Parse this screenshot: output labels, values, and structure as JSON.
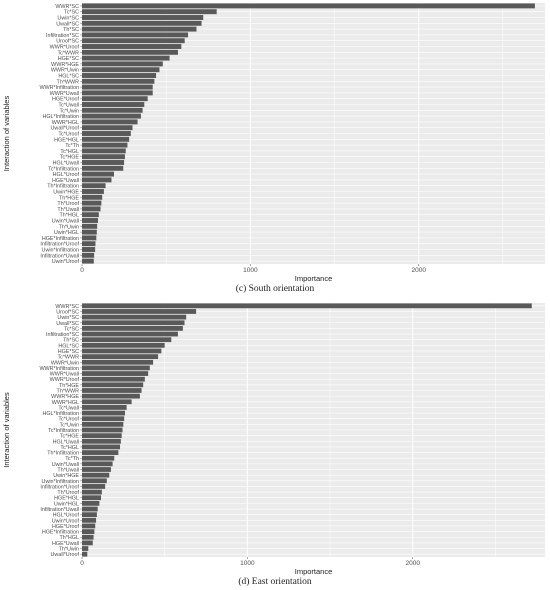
{
  "chart_data": [
    {
      "type": "bar",
      "orientation": "horizontal",
      "caption": "(c) South orientation",
      "xlabel": "Importance",
      "ylabel": "Interaction of variables",
      "xlim": [
        0,
        2750
      ],
      "xticks": [
        0,
        1000,
        2000
      ],
      "grid": true,
      "legend": "none",
      "bar_color": "#595959",
      "panel_color": "#ebebeb",
      "categories": [
        "WWR*SC",
        "Tc*SC",
        "Uwin*SC",
        "Uwall*SC",
        "Th*SC",
        "Infiltration*SC",
        "Uroof*SC",
        "WWR*Uroof",
        "Tc*WWR",
        "HGE*SC",
        "WWR*HGE",
        "WWR*Uwin",
        "HGL*SC",
        "Th*WWR",
        "WWR*Infiltration",
        "WWR*Uwall",
        "HGE*Uroof",
        "Tc*Uwall",
        "Tc*Uwin",
        "HGL*Infiltration",
        "WWR*HGL",
        "Uwall*Uroof",
        "Tc*Uroof",
        "HGE*HGL",
        "Tc*Th",
        "Tc*HGL",
        "Tc*HGE",
        "HGL*Uwall",
        "Tc*Infiltration",
        "HGL*Uroof",
        "HGE*Uwall",
        "Th*Infiltration",
        "Uwin*HGE",
        "Th*HGE",
        "Th*Uroof",
        "Th*Uwall",
        "Th*HGL",
        "Uwin*Uwall",
        "Th*Uwin",
        "Uwin*HGL",
        "HGE*Infiltration",
        "Infiltration*Uroof",
        "Uwin*Infiltration",
        "Infiltration*Uwall",
        "Uwin*Uroof"
      ],
      "values": [
        2690,
        800,
        720,
        710,
        680,
        630,
        610,
        590,
        570,
        520,
        480,
        460,
        440,
        430,
        420,
        420,
        390,
        370,
        360,
        350,
        330,
        300,
        290,
        280,
        270,
        260,
        255,
        250,
        245,
        190,
        175,
        140,
        130,
        120,
        115,
        110,
        100,
        95,
        90,
        88,
        85,
        80,
        78,
        72,
        70
      ]
    },
    {
      "type": "bar",
      "orientation": "horizontal",
      "caption": "(d) East orientation",
      "xlabel": "Importance",
      "ylabel": "Interaction of variables",
      "xlim": [
        0,
        2800
      ],
      "xticks": [
        0,
        1000,
        2000
      ],
      "grid": true,
      "legend": "none",
      "bar_color": "#595959",
      "panel_color": "#ebebeb",
      "categories": [
        "WWR*SC",
        "Uroof*SC",
        "Uwin*SC",
        "Uwall*SC",
        "Tc*SC",
        "Infiltration*SC",
        "Th*SC",
        "HGL*SC",
        "HGE*SC",
        "Tc*WWR",
        "WWR*Uwin",
        "WWR*Infiltration",
        "WWR*Uwall",
        "WWR*Uroof",
        "Th*HGE",
        "Th*WWR",
        "WWR*HGE",
        "WWR*HGL",
        "Tc*Uwall",
        "HGL*Infiltration",
        "Tc*Uroof",
        "Tc*Uwin",
        "Tc*Infiltration",
        "Tc*HGE",
        "HGL*Uwall",
        "Tc*HGL",
        "Th*Infiltration",
        "Tc*Th",
        "Uwin*Uwall",
        "Th*Uwall",
        "Uwin*HGE",
        "Uwin*Infiltration",
        "Infiltration*Uroof",
        "Th*Uroof",
        "HGE*HGL",
        "Uwin*HGL",
        "Infiltration*Uwall",
        "HGL*Uroof",
        "Uwin*Uroof",
        "HGE*Uroof",
        "HGE*Infiltration",
        "Th*HGL",
        "HGE*Uwall",
        "Th*Uwin",
        "Uwall*Uroof"
      ],
      "values": [
        2720,
        690,
        630,
        620,
        610,
        580,
        540,
        500,
        480,
        460,
        430,
        410,
        400,
        380,
        370,
        360,
        350,
        300,
        270,
        260,
        255,
        250,
        245,
        240,
        235,
        230,
        220,
        195,
        185,
        175,
        165,
        150,
        140,
        120,
        115,
        105,
        95,
        90,
        85,
        80,
        75,
        70,
        65,
        38,
        32
      ]
    }
  ]
}
